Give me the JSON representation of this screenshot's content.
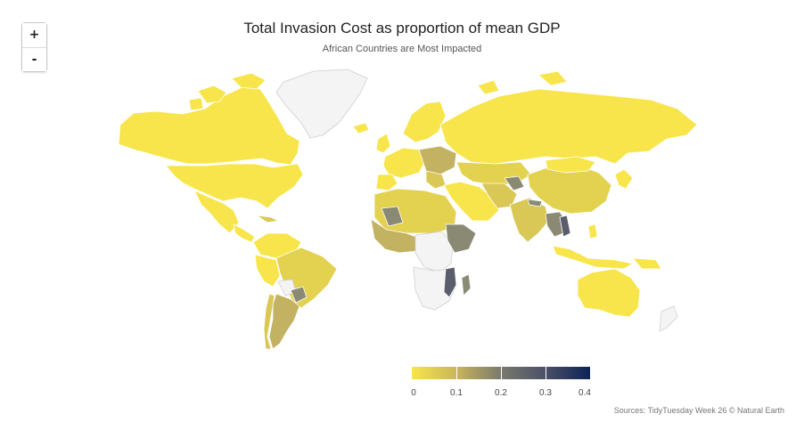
{
  "title": "Total Invasion Cost as proportion of mean GDP",
  "subtitle": "African Countries are Most Impacted",
  "zoom": {
    "in_label": "+",
    "out_label": "-"
  },
  "legend": {
    "ticks": [
      "0",
      "0.1",
      "0.2",
      "0.3",
      "0.4"
    ],
    "color_low": "#f7e54b",
    "color_high": "#0d2257"
  },
  "source": "Sources: TidyTuesday Week 26 © Natural Earth",
  "colors": {
    "no_data": "#f4f4f4",
    "low": "#f7e54b",
    "mid_low": "#d9c756",
    "mid": "#c2b261",
    "mid_high": "#8a8a74",
    "high": "#5a5e6c",
    "border": "#ffffff"
  }
}
